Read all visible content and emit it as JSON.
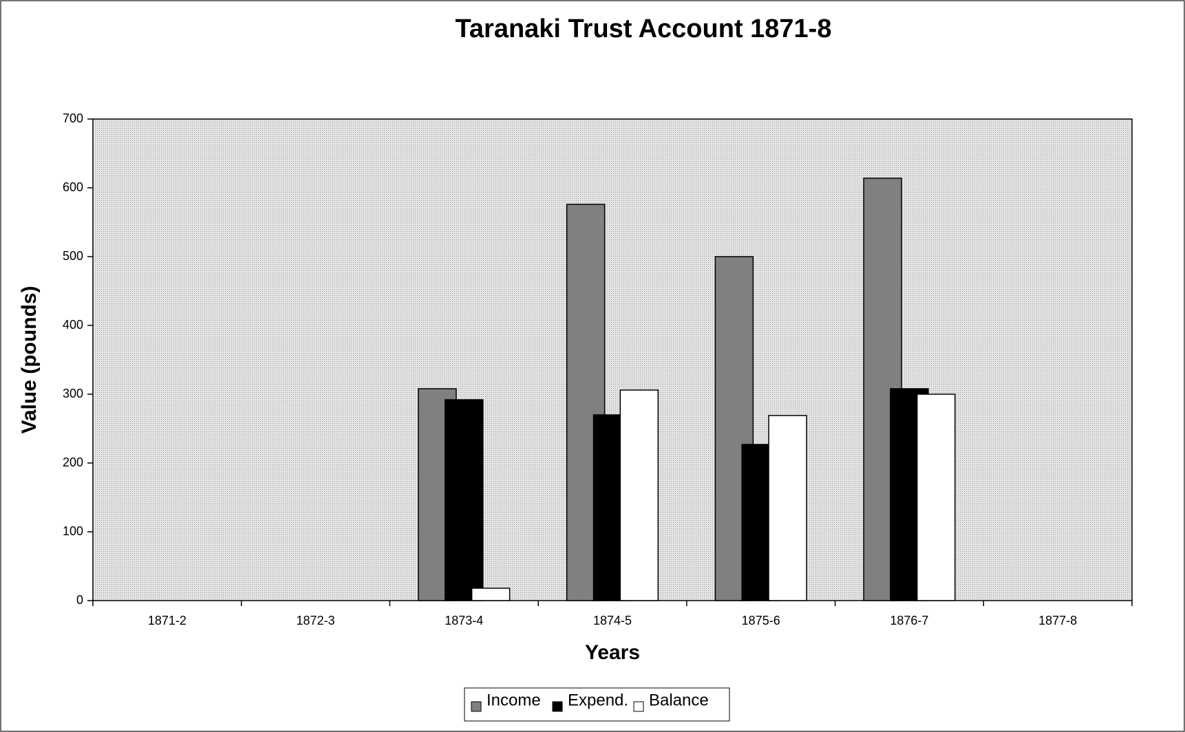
{
  "chart_data": {
    "type": "bar",
    "title": "Taranaki Trust Account 1871-8",
    "xlabel": "Years",
    "ylabel": "Value (pounds)",
    "categories": [
      "1871-2",
      "1872-3",
      "1873-4",
      "1874-5",
      "1875-6",
      "1876-7",
      "1877-8"
    ],
    "series": [
      {
        "name": "Income",
        "color": "#808080",
        "values": [
          null,
          null,
          308,
          576,
          500,
          614,
          null
        ]
      },
      {
        "name": "Expend.",
        "color": "#000000",
        "values": [
          null,
          null,
          292,
          270,
          227,
          308,
          null
        ]
      },
      {
        "name": "Balance",
        "color": "#ffffff",
        "values": [
          null,
          null,
          18,
          306,
          269,
          300,
          null
        ]
      }
    ],
    "ylim": [
      0,
      700
    ],
    "yticks": [
      0,
      100,
      200,
      300,
      400,
      500,
      600,
      700
    ],
    "legend": "bottom"
  }
}
